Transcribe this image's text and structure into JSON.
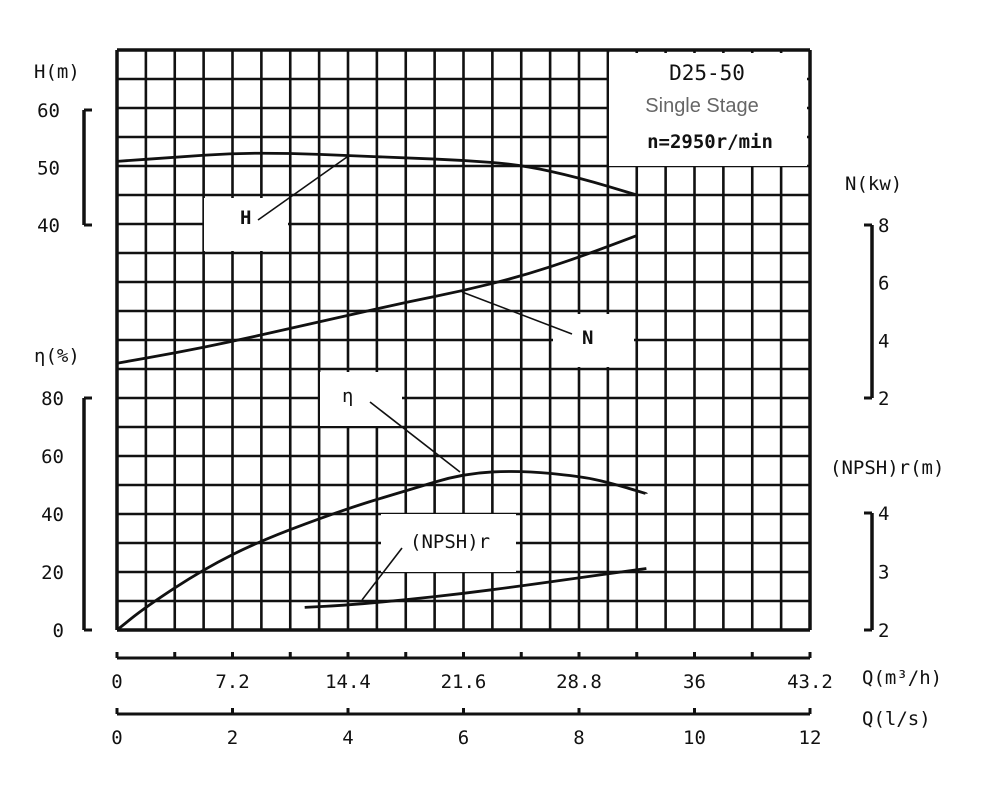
{
  "chart_data": {
    "type": "line",
    "title": "D25-50",
    "subtitle": "Single Stage",
    "speed": "n=2950r/min",
    "x_axis": {
      "label": "Q(m³/h)",
      "range": [
        0,
        43.2
      ],
      "ticks": [
        "0",
        "7.2",
        "14.4",
        "21.6",
        "28.8",
        "36",
        "43.2"
      ]
    },
    "x2_axis": {
      "label": "Q(l/s)",
      "range": [
        0,
        12
      ],
      "ticks": [
        "0",
        "2",
        "4",
        "6",
        "8",
        "10",
        "12"
      ]
    },
    "axes": {
      "H": {
        "label": "H(m)",
        "range": [
          40,
          60
        ],
        "ticks": [
          "40",
          "50",
          "60"
        ]
      },
      "N": {
        "label": "N(kw)",
        "range": [
          2,
          8
        ],
        "ticks": [
          "2",
          "4",
          "6",
          "8"
        ]
      },
      "eta": {
        "label": "η(%)",
        "range": [
          0,
          80
        ],
        "ticks": [
          "0",
          "20",
          "40",
          "60",
          "80"
        ]
      },
      "npsh": {
        "label": "(NPSH)r(m)",
        "range": [
          2,
          4
        ],
        "ticks": [
          "2",
          "3",
          "4"
        ]
      }
    },
    "grid": true,
    "series": [
      {
        "name": "H",
        "axis": "H",
        "x": [
          0,
          3.6,
          7.2,
          10.8,
          14.4,
          18,
          21.6,
          25.2,
          28.8,
          32.4
        ],
        "y": [
          50.8,
          51.5,
          52.2,
          52.2,
          51.8,
          51.4,
          51,
          50.2,
          48,
          45
        ]
      },
      {
        "name": "N",
        "axis": "N",
        "x": [
          0,
          3.6,
          7.2,
          10.8,
          14.4,
          18,
          21.6,
          25.2,
          28.8,
          32.4
        ],
        "y": [
          3.2,
          3.55,
          3.95,
          4.4,
          4.85,
          5.3,
          5.7,
          6.2,
          6.85,
          7.6
        ]
      },
      {
        "name": "η",
        "axis": "eta",
        "x": [
          0,
          1.8,
          5.4,
          9,
          14.4,
          18,
          21.6,
          25.2,
          28.8,
          30.6,
          33
        ],
        "y": [
          0,
          8,
          21,
          31,
          42,
          48,
          54,
          55,
          53,
          51,
          47
        ]
      },
      {
        "name": "(NPSH)r",
        "axis": "npsh",
        "x": [
          11.7,
          14.4,
          18,
          21.6,
          25.2,
          28.8,
          33
        ],
        "y": [
          2.39,
          2.43,
          2.52,
          2.63,
          2.76,
          2.9,
          3.06
        ]
      }
    ]
  }
}
